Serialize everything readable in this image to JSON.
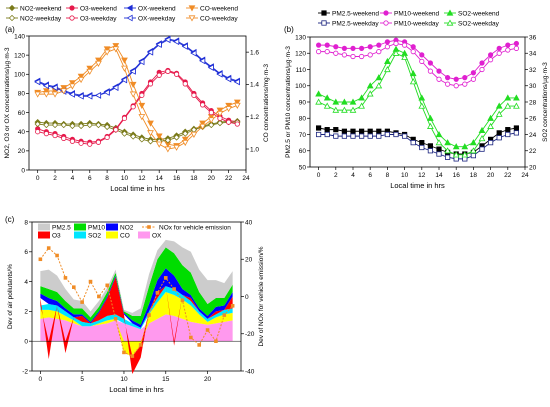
{
  "chart_data": [
    {
      "panel": "(a)",
      "type": "line",
      "xlabel": "Local time in hrs",
      "ylabel": "NO2, O3 or OX concentrations/µg·m-3",
      "y2label": "CO concentrations/mg·m-3",
      "x_ticks": [
        0,
        2,
        4,
        6,
        8,
        10,
        12,
        14,
        16,
        18,
        20,
        22,
        24
      ],
      "y_ticks": [
        0,
        20,
        40,
        60,
        80,
        100,
        120,
        140
      ],
      "y2_ticks": [
        1.0,
        1.2,
        1.4,
        1.6
      ],
      "xlim": [
        -1,
        24
      ],
      "ylim": [
        0,
        140
      ],
      "y2lim": [
        0.87,
        1.7
      ],
      "legend": [
        "NO2-weekend",
        "O3-weekend",
        "OX-weekend",
        "CO-weekend",
        "NO2-weekday",
        "O3-weekday",
        "OX-weekday",
        "CO-weekday"
      ],
      "x": [
        0,
        1,
        2,
        3,
        4,
        5,
        6,
        7,
        8,
        9,
        10,
        11,
        12,
        13,
        14,
        15,
        16,
        17,
        18,
        19,
        20,
        21,
        22,
        23
      ],
      "series": [
        {
          "name": "NO2-weekend",
          "axis": "left",
          "color": "#7a7a1a",
          "marker": "diamond",
          "filled": true,
          "values": [
            50,
            49,
            49,
            48,
            48,
            48,
            49,
            48,
            47,
            44,
            40,
            37,
            34,
            32,
            32,
            33,
            36,
            40,
            43,
            46,
            48,
            50,
            51,
            51
          ]
        },
        {
          "name": "O3-weekend",
          "axis": "left",
          "color": "#e6194b",
          "marker": "circle",
          "filled": true,
          "values": [
            43,
            40,
            38,
            35,
            32,
            30,
            29,
            30,
            35,
            43,
            55,
            67,
            80,
            92,
            102,
            104,
            101,
            92,
            80,
            70,
            62,
            56,
            52,
            50
          ]
        },
        {
          "name": "OX-weekend",
          "axis": "left",
          "color": "#1f2fd6",
          "marker": "triangle-left",
          "filled": true,
          "values": [
            93,
            89,
            87,
            83,
            80,
            78,
            78,
            78,
            82,
            87,
            95,
            104,
            114,
            124,
            132,
            137,
            135,
            130,
            123,
            115,
            108,
            101,
            96,
            93
          ]
        },
        {
          "name": "CO-weekend",
          "axis": "right",
          "color": "#f08c26",
          "marker": "triangle-down",
          "filled": true,
          "values": [
            1.35,
            1.36,
            1.36,
            1.38,
            1.41,
            1.45,
            1.5,
            1.55,
            1.62,
            1.64,
            1.55,
            1.4,
            1.27,
            1.16,
            1.08,
            1.03,
            1.02,
            1.06,
            1.11,
            1.16,
            1.2,
            1.24,
            1.27,
            1.29
          ]
        },
        {
          "name": "NO2-weekday",
          "axis": "left",
          "color": "#7a7a1a",
          "marker": "diamond",
          "filled": false,
          "values": [
            48,
            47,
            47,
            47,
            46,
            46,
            47,
            47,
            45,
            42,
            38,
            35,
            32,
            30,
            30,
            31,
            34,
            38,
            42,
            45,
            47,
            49,
            50,
            50
          ]
        },
        {
          "name": "O3-weekday",
          "axis": "left",
          "color": "#e6194b",
          "marker": "circle",
          "filled": false,
          "values": [
            40,
            38,
            36,
            33,
            30,
            28,
            27,
            29,
            34,
            42,
            54,
            66,
            78,
            90,
            99,
            103,
            100,
            90,
            78,
            68,
            60,
            54,
            50,
            48
          ]
        },
        {
          "name": "OX-weekday",
          "axis": "left",
          "color": "#1f2fd6",
          "marker": "triangle-left",
          "filled": false,
          "values": [
            92,
            88,
            86,
            82,
            79,
            77,
            77,
            78,
            81,
            86,
            94,
            103,
            113,
            123,
            131,
            136,
            134,
            129,
            122,
            114,
            107,
            100,
            95,
            92
          ]
        },
        {
          "name": "CO-weekday",
          "axis": "right",
          "color": "#f08c26",
          "marker": "triangle-down",
          "filled": false,
          "values": [
            1.34,
            1.34,
            1.34,
            1.36,
            1.39,
            1.43,
            1.48,
            1.53,
            1.6,
            1.62,
            1.5,
            1.34,
            1.2,
            1.1,
            1.03,
            1.0,
            1.01,
            1.04,
            1.09,
            1.14,
            1.18,
            1.22,
            1.25,
            1.27
          ]
        }
      ]
    },
    {
      "panel": "(b)",
      "type": "line",
      "xlabel": "Local time in hrs",
      "ylabel": "PM2.5 or PM10 concentrations/µg·m-3",
      "y2label": "SO2 concentrations/µg·m-3",
      "x_ticks": [
        0,
        2,
        4,
        6,
        8,
        10,
        12,
        14,
        16,
        18,
        20,
        22,
        24
      ],
      "y_ticks": [
        50,
        60,
        70,
        80,
        90,
        100,
        110,
        120,
        130
      ],
      "y2_ticks": [
        20,
        22,
        24,
        26,
        28,
        30,
        32,
        34,
        36
      ],
      "xlim": [
        -1,
        24
      ],
      "ylim": [
        50,
        130
      ],
      "y2lim": [
        20,
        36
      ],
      "legend": [
        "PM2.5-weekend",
        "PM10-weekend",
        "SO2-weekend",
        "PM2.5-weekday",
        "PM10-weekday",
        "SO2-weekday"
      ],
      "x": [
        0,
        1,
        2,
        3,
        4,
        5,
        6,
        7,
        8,
        9,
        10,
        11,
        12,
        13,
        14,
        15,
        16,
        17,
        18,
        19,
        20,
        21,
        22,
        23
      ],
      "series": [
        {
          "name": "PM2.5-weekend",
          "axis": "left",
          "color": "#000000",
          "marker": "square",
          "filled": true,
          "values": [
            74,
            73,
            73,
            72,
            72,
            72,
            72,
            72,
            72,
            71,
            70,
            67,
            65,
            63,
            61,
            59,
            58,
            58,
            59,
            63,
            67,
            71,
            73,
            74
          ]
        },
        {
          "name": "PM10-weekend",
          "axis": "left",
          "color": "#e020d0",
          "marker": "circle",
          "filled": true,
          "values": [
            125,
            125,
            124,
            123,
            123,
            123,
            124,
            125,
            127,
            128,
            127,
            124,
            119,
            114,
            109,
            105,
            104,
            105,
            108,
            114,
            119,
            123,
            125,
            126
          ]
        },
        {
          "name": "SO2-weekend",
          "axis": "right",
          "color": "#22dd22",
          "marker": "triangle-up",
          "filled": true,
          "values": [
            29,
            28.5,
            28,
            28,
            28,
            28.5,
            30,
            31,
            33,
            34.5,
            34,
            31.5,
            28.5,
            26,
            24,
            23,
            22.5,
            22.5,
            23,
            24.5,
            26,
            27.5,
            28.5,
            28.5
          ]
        },
        {
          "name": "PM2.5-weekday",
          "axis": "left",
          "color": "#1a237e",
          "marker": "square",
          "filled": false,
          "values": [
            70,
            70,
            69,
            69,
            69,
            69,
            69,
            69,
            70,
            70,
            69,
            65,
            62,
            60,
            58,
            56,
            55,
            55,
            57,
            61,
            65,
            68,
            70,
            71
          ]
        },
        {
          "name": "PM10-weekday",
          "axis": "left",
          "color": "#e020d0",
          "marker": "circle",
          "filled": false,
          "values": [
            121,
            121,
            120,
            119,
            118,
            118,
            119,
            121,
            124,
            126,
            125,
            121,
            115,
            109,
            104,
            101,
            100,
            101,
            104,
            110,
            116,
            120,
            122,
            123
          ]
        },
        {
          "name": "SO2-weekday",
          "axis": "right",
          "color": "#22dd22",
          "marker": "triangle-up",
          "filled": false,
          "values": [
            28,
            27.5,
            27,
            27,
            27,
            27.5,
            29,
            30,
            32,
            34,
            33.5,
            30.5,
            27.5,
            25,
            23,
            22,
            21.5,
            21.5,
            22,
            23.5,
            25,
            26.5,
            27.5,
            27.5
          ]
        }
      ]
    },
    {
      "panel": "(c)",
      "type": "area",
      "stacked": true,
      "xlabel": "Local time in hrs",
      "ylabel": "Dev of air pollutants/%",
      "y2label": "Dev of NOx for vehicle emission/%",
      "x_ticks": [
        0,
        5,
        10,
        15,
        20
      ],
      "y_ticks": [
        -2,
        0,
        2,
        4,
        6,
        8
      ],
      "y2_ticks": [
        -40,
        -20,
        0,
        20,
        40
      ],
      "xlim": [
        -1,
        24
      ],
      "ylim": [
        -2,
        8
      ],
      "y2lim": [
        -40,
        40
      ],
      "legend": [
        "PM2.5",
        "PM10",
        "NO2",
        "O3",
        "SO2",
        "CO",
        "OX",
        "NOx for vehicle emission"
      ],
      "x": [
        0,
        1,
        2,
        3,
        4,
        5,
        6,
        7,
        8,
        9,
        10,
        11,
        12,
        13,
        14,
        15,
        16,
        17,
        18,
        19,
        20,
        21,
        22,
        23
      ],
      "layers": [
        {
          "name": "OX",
          "color": "#ff99ee",
          "values": [
            1.5,
            1.6,
            1.5,
            1.4,
            1.2,
            1.0,
            1.0,
            1.1,
            1.2,
            1.4,
            1.2,
            1.0,
            0.8,
            1.2,
            1.5,
            1.8,
            1.7,
            1.5,
            1.3,
            1.2,
            1.1,
            1.2,
            1.3,
            1.4
          ]
        },
        {
          "name": "CO",
          "color": "#ffff00",
          "values": [
            0.6,
            0.5,
            0.5,
            0.3,
            0.2,
            0.0,
            0.0,
            0.1,
            0.2,
            0.1,
            -0.8,
            -1.0,
            -0.3,
            0.6,
            1.1,
            1.5,
            1.4,
            1.3,
            1.1,
            0.6,
            0.2,
            0.4,
            0.5,
            0.5
          ]
        },
        {
          "name": "SO2",
          "color": "#00e5ff",
          "values": [
            0.3,
            0.4,
            0.4,
            0.3,
            0.2,
            0.3,
            0.2,
            0.2,
            0.3,
            0.3,
            0.3,
            0.2,
            0.1,
            0.2,
            0.3,
            0.4,
            0.4,
            0.3,
            0.3,
            0.2,
            0.2,
            0.2,
            0.3,
            0.3
          ]
        },
        {
          "name": "O3",
          "color": "#ff0000",
          "values": [
            0.5,
            -1.2,
            0.0,
            -0.8,
            0.0,
            0.4,
            0.0,
            0.5,
            1.2,
            2.5,
            0.3,
            -1.2,
            -0.8,
            0.0,
            0.4,
            0.0,
            -0.3,
            0.0,
            0.2,
            0.0,
            0.0,
            0.2,
            0.0,
            0.8
          ]
        },
        {
          "name": "NO2",
          "color": "#0000ff",
          "values": [
            0.3,
            0.4,
            0.3,
            0.2,
            0.2,
            0.1,
            0.1,
            0.1,
            0.1,
            0.1,
            0.1,
            0.2,
            0.2,
            0.5,
            0.8,
            1.2,
            0.9,
            0.4,
            0.2,
            0.2,
            0.2,
            0.3,
            0.3,
            0.3
          ]
        },
        {
          "name": "PM10",
          "color": "#00dd00",
          "values": [
            0.5,
            0.6,
            0.6,
            0.5,
            0.4,
            0.4,
            0.3,
            0.3,
            0.3,
            0.2,
            0.1,
            0.3,
            0.6,
            1.2,
            1.4,
            1.4,
            1.5,
            1.6,
            1.5,
            1.1,
            0.8,
            0.6,
            0.5,
            0.5
          ]
        },
        {
          "name": "PM2.5",
          "color": "#cccccc",
          "values": [
            1.0,
            1.3,
            1.1,
            0.8,
            0.6,
            0.5,
            0.4,
            0.4,
            0.3,
            0.2,
            0.1,
            0.2,
            0.5,
            0.8,
            0.6,
            0.5,
            0.8,
            1.2,
            1.4,
            1.5,
            1.6,
            1.2,
            1.0,
            0.9
          ]
        }
      ],
      "line_series": {
        "name": "NOx for vehicle emission",
        "axis": "right",
        "color": "#f08c26",
        "marker": "square",
        "values": [
          20,
          26,
          22,
          10,
          5,
          -3,
          8,
          0,
          6,
          -12,
          -30,
          -32,
          -26,
          -10,
          2,
          10,
          4,
          -2,
          -22,
          -26,
          -18,
          -24,
          -10,
          -5
        ]
      }
    }
  ]
}
